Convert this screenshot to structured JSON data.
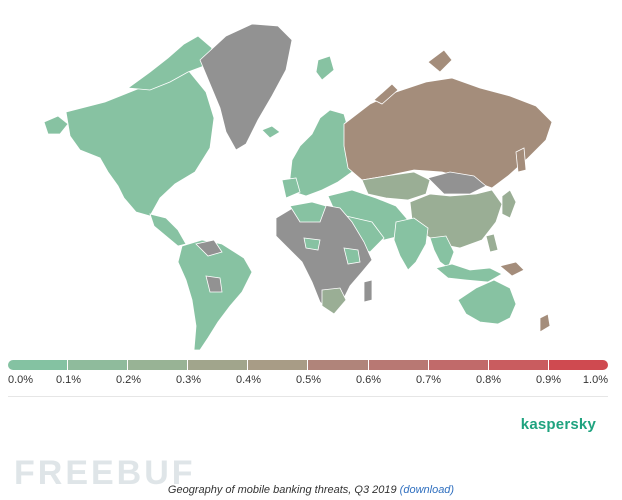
{
  "scale": {
    "labels": [
      "0.0%",
      "0.1%",
      "0.2%",
      "0.3%",
      "0.4%",
      "0.5%",
      "0.6%",
      "0.7%",
      "0.8%",
      "0.9%",
      "1.0%"
    ],
    "colors": [
      "#84c2a2",
      "#8fbb9c",
      "#98b395",
      "#a1a58c",
      "#a89c86",
      "#b0847a",
      "#b87873",
      "#c16a6a",
      "#c95c5f",
      "#cf4a50",
      "#d83538"
    ]
  },
  "map": {
    "colors": {
      "low": "#87c2a2",
      "mid": "#9aae95",
      "high": "#a48d7b",
      "no_data": "#929292",
      "ocean": "#ffffff"
    },
    "regions": [
      {
        "name": "north-america",
        "level": "low"
      },
      {
        "name": "south-america",
        "level": "low"
      },
      {
        "name": "greenland",
        "level": "no_data"
      },
      {
        "name": "europe",
        "level": "low"
      },
      {
        "name": "russia",
        "level": "high"
      },
      {
        "name": "kazakhstan",
        "level": "mid"
      },
      {
        "name": "china",
        "level": "mid"
      },
      {
        "name": "india",
        "level": "low"
      },
      {
        "name": "africa",
        "level": "no_data"
      },
      {
        "name": "south-africa",
        "level": "mid"
      },
      {
        "name": "australia",
        "level": "low"
      },
      {
        "name": "middle-east",
        "level": "low"
      }
    ]
  },
  "logo_text": "kaspersky",
  "watermark_text": "FREEBUF",
  "caption": {
    "text": "Geography of mobile banking threats, Q3 2019",
    "link": "(download)"
  }
}
